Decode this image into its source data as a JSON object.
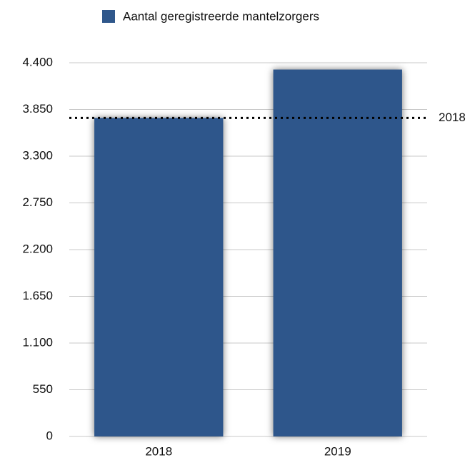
{
  "chart_data": {
    "type": "bar",
    "categories": [
      "2018",
      "2019"
    ],
    "series": [
      {
        "name": "Aantal geregistreerde mantelzorgers",
        "color": "#2f578b",
        "values": [
          3750,
          4320
        ]
      }
    ],
    "ylim": [
      0,
      4400
    ],
    "yticks": [
      0,
      550,
      {
        "value": 1100,
        "label": "1.100"
      },
      {
        "value": 1650,
        "label": "1.650"
      },
      {
        "value": 2200,
        "label": "2.200"
      },
      {
        "value": 2750,
        "label": "2.750"
      },
      {
        "value": 3300,
        "label": "3.300"
      },
      {
        "value": 3850,
        "label": "3.850"
      },
      {
        "value": 4400,
        "label": "4.400"
      }
    ],
    "grid": true,
    "legend": "top",
    "reference_line": {
      "value": 3750,
      "label": "2018"
    }
  }
}
